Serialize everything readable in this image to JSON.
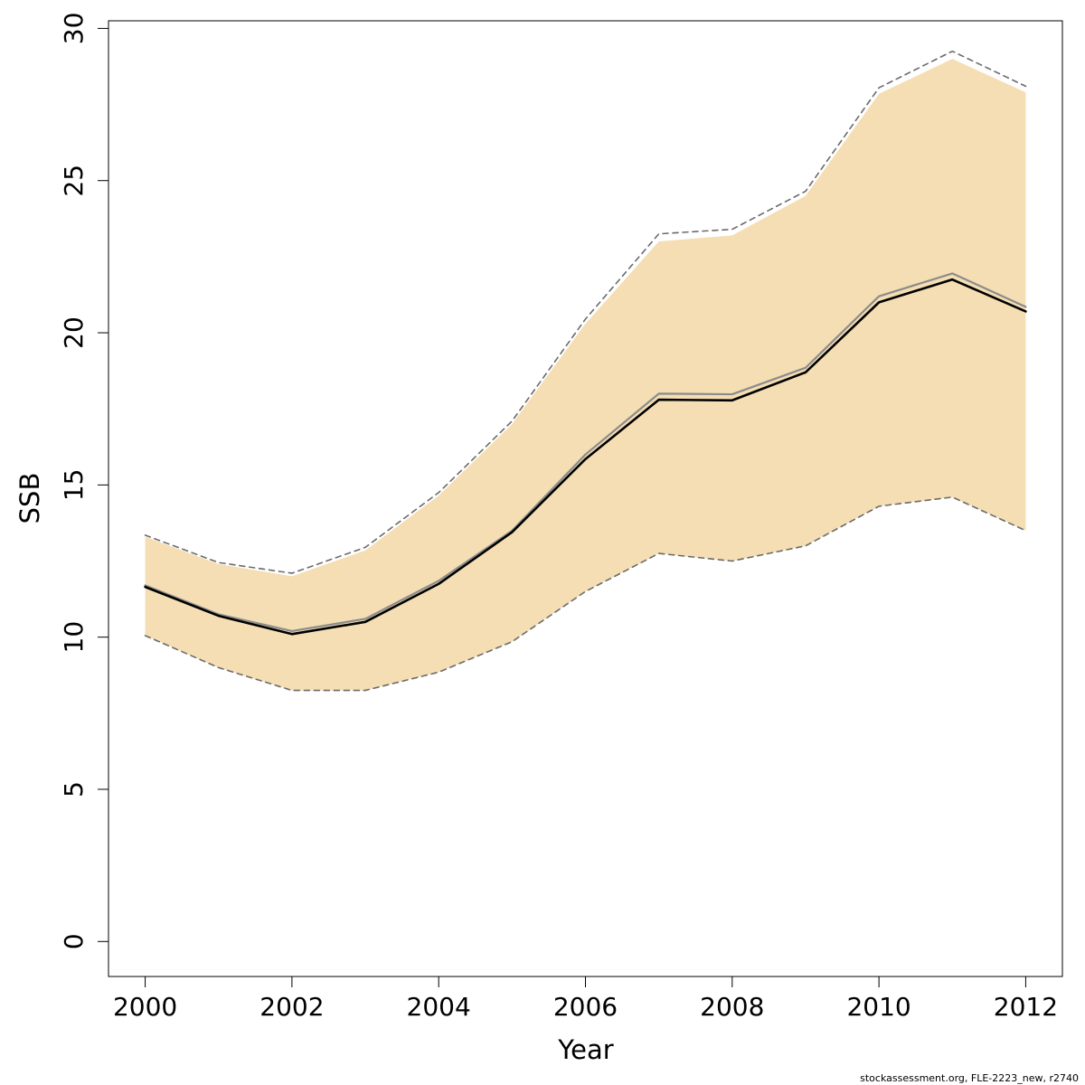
{
  "chart_data": {
    "type": "line",
    "title": "",
    "xlabel": "Year",
    "ylabel": "SSB",
    "xlim": [
      1999.5,
      2012.5
    ],
    "ylim": [
      -1.15,
      30.25
    ],
    "x_ticks": [
      2000,
      2002,
      2004,
      2006,
      2008,
      2010,
      2012
    ],
    "y_ticks": [
      0,
      5,
      10,
      15,
      20,
      25,
      30
    ],
    "grid": false,
    "x": [
      2000,
      2001,
      2002,
      2003,
      2004,
      2005,
      2006,
      2007,
      2008,
      2009,
      2010,
      2011,
      2012
    ],
    "series": [
      {
        "role": "band",
        "color": "#f5deb3",
        "upper": [
          13.3,
          12.4,
          12.0,
          12.85,
          14.65,
          17.0,
          20.3,
          23.0,
          23.2,
          24.5,
          27.85,
          29.0,
          27.9
        ],
        "lower": [
          10.05,
          9.0,
          8.25,
          8.25,
          8.85,
          9.85,
          11.5,
          12.75,
          12.5,
          13.0,
          14.3,
          14.6,
          13.5
        ]
      },
      {
        "role": "upper-bound",
        "style": "dashed",
        "color": "#6b6b6b",
        "values": [
          13.35,
          12.45,
          12.1,
          12.95,
          14.75,
          17.1,
          20.45,
          23.25,
          23.4,
          24.65,
          28.05,
          29.25,
          28.1
        ]
      },
      {
        "role": "lower-bound",
        "style": "dashed",
        "color": "#6b6b6b",
        "values": [
          10.05,
          9.0,
          8.25,
          8.25,
          8.85,
          9.85,
          11.5,
          12.75,
          12.5,
          13.0,
          14.3,
          14.6,
          13.5
        ]
      },
      {
        "role": "estimate-previous",
        "style": "solid",
        "color": "#8c8c8c",
        "values": [
          11.7,
          10.75,
          10.2,
          10.6,
          11.85,
          13.5,
          16.0,
          18.0,
          17.98,
          18.85,
          21.2,
          21.95,
          20.85
        ]
      },
      {
        "role": "estimate",
        "style": "solid",
        "color": "#000000",
        "values": [
          11.65,
          10.7,
          10.1,
          10.5,
          11.75,
          13.45,
          15.85,
          17.8,
          17.78,
          18.7,
          21.0,
          21.75,
          20.7
        ]
      }
    ]
  },
  "footer": "stockassessment.org, FLE-2223_new, r2740"
}
